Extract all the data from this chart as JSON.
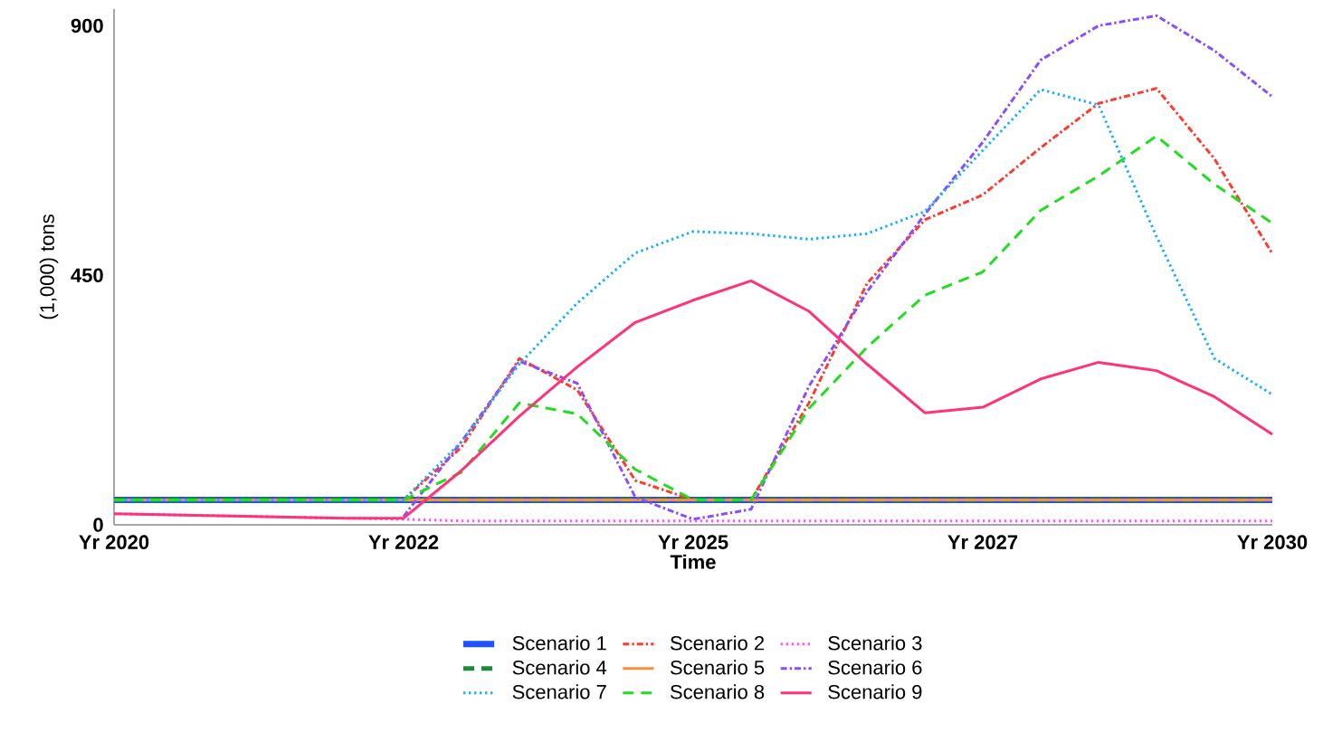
{
  "chart_data": {
    "type": "line",
    "xlabel": "Time",
    "ylabel": "(1,000) tons",
    "categories": [
      "Yr 2020",
      null,
      null,
      null,
      null,
      "Yr 2022",
      null,
      null,
      null,
      null,
      "Yr 2025",
      null,
      null,
      null,
      null,
      "Yr 2027",
      null,
      null,
      null,
      null,
      "Yr 2030"
    ],
    "ylim": [
      0,
      930
    ],
    "yticks": [
      0,
      450,
      900
    ],
    "grid": false,
    "legend": "bottom",
    "marker": "none",
    "series": [
      {
        "name": "Scenario 1",
        "color": "#1f4fff",
        "line_style": "solid",
        "values": [
          45,
          45,
          45,
          45,
          45,
          45,
          45,
          45,
          45,
          45,
          45,
          45,
          45,
          45,
          45,
          45,
          45,
          45,
          45,
          45,
          45
        ]
      },
      {
        "name": "Scenario 2",
        "color": "#ff3b30",
        "line_style": "dashdotted",
        "values": [
          null,
          null,
          null,
          null,
          null,
          45,
          140,
          300,
          243,
          80,
          45,
          45,
          220,
          435,
          550,
          595,
          680,
          760,
          787,
          660,
          489
        ]
      },
      {
        "name": "Scenario 3",
        "color": "#ff55ff",
        "line_style": "dotted",
        "values": [
          20,
          18,
          16,
          14,
          12,
          10,
          7,
          7,
          7,
          7,
          7,
          7,
          7,
          7,
          7,
          7,
          7,
          7,
          7,
          7,
          7
        ]
      },
      {
        "name": "Scenario 4",
        "color": "#1e8a3a",
        "line_style": "dashed",
        "values": [
          45,
          45,
          45,
          45,
          45,
          45,
          45,
          45,
          45,
          45,
          45,
          45,
          45,
          45,
          45,
          45,
          45,
          45,
          45,
          45,
          45
        ]
      },
      {
        "name": "Scenario 5",
        "color": "#ff8c3a",
        "line_style": "solid",
        "values": [
          45,
          45,
          45,
          45,
          45,
          45,
          45,
          45,
          45,
          45,
          45,
          45,
          45,
          45,
          45,
          45,
          45,
          45,
          45,
          45,
          45
        ]
      },
      {
        "name": "Scenario 6",
        "color": "#8a4dff",
        "line_style": "dashdotted",
        "values": [
          null,
          null,
          null,
          null,
          null,
          15,
          150,
          295,
          255,
          50,
          10,
          28,
          250,
          420,
          560,
          690,
          838,
          900,
          918,
          855,
          772
        ]
      },
      {
        "name": "Scenario 7",
        "color": "#1ab0ff",
        "line_style": "dotted",
        "values": [
          45,
          45,
          45,
          45,
          45,
          45,
          150,
          290,
          400,
          490,
          529,
          525,
          515,
          525,
          565,
          675,
          785,
          757,
          520,
          300,
          235
        ]
      },
      {
        "name": "Scenario 8",
        "color": "#22dd22",
        "line_style": "dashed",
        "values": [
          45,
          45,
          45,
          45,
          45,
          45,
          95,
          220,
          200,
          100,
          45,
          45,
          210,
          320,
          414,
          456,
          567,
          629,
          701,
          614,
          544
        ]
      },
      {
        "name": "Scenario 9",
        "color": "#ff3377",
        "line_style": "solid",
        "values": [
          20,
          18,
          16,
          14,
          12,
          12,
          98,
          196,
          285,
          365,
          405,
          440,
          385,
          290,
          202,
          212,
          263,
          293,
          278,
          231,
          163
        ]
      }
    ]
  }
}
